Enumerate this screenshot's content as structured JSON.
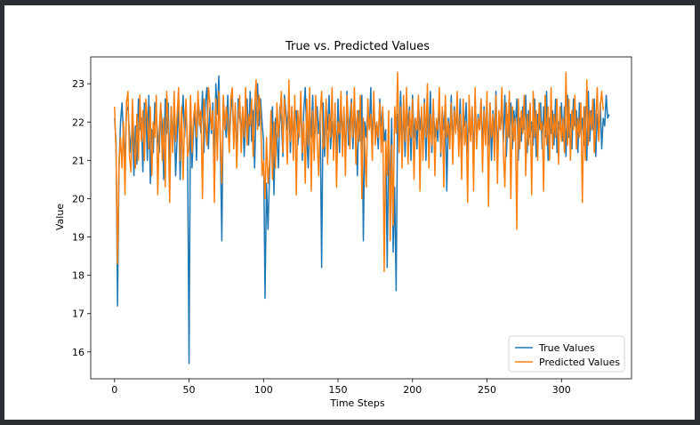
{
  "chart_data": {
    "type": "line",
    "title": "True vs. Predicted Values",
    "xlabel": "Time Steps",
    "ylabel": "Value",
    "xlim": [
      -16,
      347
    ],
    "ylim": [
      15.3,
      23.7
    ],
    "xticks": [
      0,
      50,
      100,
      150,
      200,
      250,
      300
    ],
    "yticks": [
      16,
      17,
      18,
      19,
      20,
      21,
      22,
      23
    ],
    "grid": false,
    "legend_position": "lower-right",
    "series": [
      {
        "name": "True Values",
        "color": "#1f77b4",
        "values": [
          22.1,
          21.5,
          17.2,
          20.8,
          22.0,
          22.5,
          21.6,
          21.1,
          22.3,
          22.4,
          21.7,
          21.2,
          22.0,
          20.6,
          21.9,
          20.9,
          22.6,
          21.8,
          22.1,
          20.7,
          22.5,
          22.4,
          21.0,
          22.7,
          20.4,
          21.8,
          21.2,
          22.5,
          22.2,
          21.6,
          21.2,
          22.4,
          21.9,
          20.5,
          22.6,
          21.7,
          22.5,
          20.8,
          22.4,
          21.5,
          22.2,
          20.6,
          21.6,
          22.6,
          20.5,
          21.9,
          22.7,
          21.6,
          22.4,
          21.3,
          15.7,
          22.6,
          20.8,
          21.8,
          22.3,
          21.0,
          22.6,
          22.2,
          21.7,
          22.8,
          21.2,
          22.5,
          22.9,
          21.3,
          22.4,
          21.7,
          22.5,
          20.8,
          23.0,
          22.2,
          23.2,
          21.4,
          18.9,
          22.6,
          22.0,
          21.6,
          22.7,
          21.4,
          22.2,
          22.8,
          21.6,
          22.3,
          21.0,
          22.6,
          22.1,
          21.8,
          22.3,
          21.1,
          22.2,
          22.6,
          21.4,
          22.8,
          21.5,
          22.3,
          20.8,
          22.4,
          23.0,
          21.9,
          22.6,
          22.0,
          21.5,
          17.4,
          20.4,
          19.2,
          20.6,
          21.8,
          22.4,
          20.1,
          22.1,
          21.6,
          20.8,
          22.4,
          22.0,
          21.1,
          22.7,
          22.3,
          21.8,
          22.6,
          21.2,
          22.4,
          21.6,
          22.0,
          22.3,
          21.4,
          21.9,
          22.5,
          21.0,
          22.3,
          22.9,
          21.6,
          20.8,
          22.4,
          21.6,
          22.7,
          21.3,
          22.1,
          22.4,
          21.7,
          22.2,
          18.2,
          22.5,
          21.1,
          22.4,
          21.8,
          22.7,
          21.3,
          22.0,
          21.5,
          22.3,
          20.9,
          22.6,
          21.2,
          22.5,
          21.7,
          22.2,
          21.0,
          22.8,
          21.4,
          22.1,
          22.6,
          21.3,
          22.4,
          21.9,
          20.6,
          22.3,
          21.5,
          22.7,
          18.9,
          22.0,
          21.6,
          22.4,
          21.8,
          22.9,
          21.2,
          22.5,
          21.7,
          22.0,
          21.3,
          22.6,
          21.9,
          22.3,
          21.5,
          21.8,
          18.2,
          21.6,
          20.2,
          22.1,
          18.6,
          20.3,
          17.6,
          22.2,
          21.5,
          22.8,
          21.4,
          22.3,
          21.1,
          22.6,
          21.9,
          22.4,
          21.0,
          22.7,
          21.6,
          22.1,
          21.3,
          22.5,
          21.8,
          22.2,
          21.4,
          22.6,
          21.0,
          22.3,
          21.7,
          22.8,
          21.2,
          22.4,
          21.6,
          22.0,
          21.5,
          22.6,
          21.1,
          22.3,
          21.8,
          22.5,
          20.2,
          22.1,
          21.6,
          22.7,
          21.3,
          22.4,
          21.8,
          22.2,
          21.5,
          22.6,
          21.1,
          22.3,
          21.9,
          22.5,
          21.2,
          22.0,
          21.6,
          22.4,
          21.0,
          22.7,
          21.5,
          22.2,
          21.8,
          22.6,
          21.3,
          22.4,
          21.7,
          22.1,
          21.4,
          22.5,
          21.0,
          22.3,
          21.6,
          22.8,
          21.2,
          22.0,
          21.8,
          22.4,
          21.5,
          22.7,
          21.1,
          22.2,
          21.6,
          22.5,
          21.3,
          22.3,
          21.9,
          22.6,
          21.0,
          22.1,
          21.5,
          22.4,
          21.8,
          22.7,
          21.2,
          22.3,
          21.6,
          22.0,
          21.4,
          22.6,
          21.1,
          22.2,
          21.8,
          22.5,
          21.3,
          22.4,
          21.6,
          22.8,
          21.0,
          22.1,
          21.7,
          22.3,
          21.4,
          22.6,
          21.2,
          22.0,
          21.8,
          22.5,
          21.5,
          22.4,
          21.1,
          22.7,
          21.6,
          22.2,
          21.3,
          22.6,
          21.9,
          22.3,
          21.2,
          22.5,
          21.7,
          22.1,
          21.4,
          22.4,
          21.0,
          22.8,
          21.5,
          22.3,
          21.8,
          22.6,
          21.1,
          22.2,
          21.6,
          22.5,
          21.3,
          22.1,
          21.9,
          22.7,
          22.1,
          22.2
        ]
      },
      {
        "name": "Predicted Values",
        "color": "#ff7f0e",
        "values": [
          22.4,
          21.2,
          18.3,
          21.0,
          21.6,
          20.8,
          22.0,
          20.1,
          22.5,
          22.8,
          21.1,
          20.7,
          22.6,
          21.4,
          20.8,
          22.2,
          21.0,
          22.7,
          21.5,
          22.3,
          21.0,
          22.6,
          22.1,
          21.3,
          22.4,
          20.6,
          22.0,
          21.6,
          22.7,
          20.1,
          21.8,
          22.5,
          21.0,
          22.1,
          20.3,
          22.8,
          22.0,
          19.9,
          22.4,
          21.2,
          22.8,
          21.5,
          22.2,
          22.9,
          21.0,
          22.4,
          20.5,
          22.0,
          22.6,
          21.1,
          21.3,
          22.7,
          21.2,
          22.1,
          22.5,
          21.6,
          22.8,
          21.9,
          22.3,
          20.0,
          22.6,
          22.0,
          21.4,
          22.9,
          22.5,
          21.8,
          22.3,
          19.9,
          22.6,
          21.0,
          22.8,
          21.6,
          20.4,
          22.7,
          21.8,
          22.4,
          22.0,
          21.2,
          22.6,
          22.9,
          21.3,
          22.5,
          20.8,
          22.1,
          22.7,
          21.2,
          22.4,
          21.6,
          22.9,
          21.4,
          22.2,
          21.9,
          22.6,
          21.1,
          22.4,
          23.1,
          21.8,
          22.7,
          22.3,
          20.6,
          21.0,
          20.0,
          21.6,
          20.4,
          20.9,
          22.3,
          20.5,
          22.0,
          20.8,
          22.5,
          21.6,
          22.2,
          22.8,
          21.2,
          22.6,
          22.0,
          20.9,
          23.1,
          21.5,
          22.4,
          21.0,
          22.7,
          20.1,
          22.3,
          21.6,
          22.8,
          21.2,
          22.0,
          20.4,
          22.6,
          21.4,
          22.9,
          20.2,
          22.3,
          21.0,
          22.7,
          21.5,
          20.6,
          22.2,
          22.8,
          21.3,
          21.4,
          22.6,
          20.9,
          22.2,
          21.6,
          22.9,
          21.0,
          22.5,
          20.3,
          22.0,
          21.7,
          22.8,
          21.1,
          22.4,
          20.6,
          22.7,
          22.0,
          21.3,
          22.5,
          21.6,
          22.9,
          20.9,
          22.3,
          21.5,
          22.7,
          20.0,
          22.1,
          21.4,
          20.3,
          22.6,
          21.8,
          22.2,
          21.0,
          22.8,
          21.4,
          22.0,
          21.6,
          22.5,
          21.2,
          22.4,
          18.1,
          21.5,
          20.6,
          22.3,
          18.9,
          21.4,
          19.3,
          22.4,
          21.7,
          23.3,
          21.2,
          22.4,
          20.8,
          22.7,
          21.5,
          22.9,
          20.9,
          22.3,
          21.6,
          22.6,
          20.5,
          22.1,
          21.8,
          22.7,
          20.2,
          22.4,
          21.0,
          22.5,
          21.6,
          23.0,
          20.8,
          22.2,
          21.4,
          22.6,
          20.6,
          22.1,
          21.8,
          22.9,
          21.2,
          22.4,
          20.3,
          22.7,
          21.6,
          22.0,
          21.3,
          22.5,
          20.9,
          22.3,
          21.7,
          22.8,
          21.1,
          22.2,
          20.5,
          22.6,
          21.4,
          22.0,
          19.9,
          22.7,
          21.5,
          22.4,
          20.2,
          22.9,
          21.3,
          22.1,
          21.8,
          22.6,
          20.7,
          22.3,
          21.4,
          22.8,
          19.8,
          22.5,
          21.6,
          22.2,
          21.0,
          22.7,
          20.4,
          22.3,
          21.8,
          22.9,
          21.2,
          20.3,
          22.5,
          21.6,
          22.8,
          20.0,
          22.4,
          21.5,
          22.1,
          19.2,
          22.6,
          21.3,
          22.3,
          21.7,
          22.7,
          20.6,
          22.2,
          21.4,
          22.5,
          20.1,
          22.8,
          21.6,
          22.3,
          21.0,
          22.5,
          21.8,
          22.0,
          20.2,
          22.7,
          21.4,
          22.4,
          21.0,
          22.9,
          21.3,
          22.2,
          21.6,
          22.6,
          20.9,
          22.4,
          21.5,
          22.1,
          21.2,
          23.3,
          21.4,
          22.6,
          21.0,
          22.3,
          21.8,
          22.7,
          21.3,
          22.1,
          21.6,
          22.5,
          19.9,
          22.4,
          21.0,
          23.1,
          21.4,
          22.3,
          21.8,
          22.6,
          21.2,
          22.0,
          22.9,
          21.5,
          22.4,
          22.8,
          22.3
        ]
      }
    ]
  }
}
